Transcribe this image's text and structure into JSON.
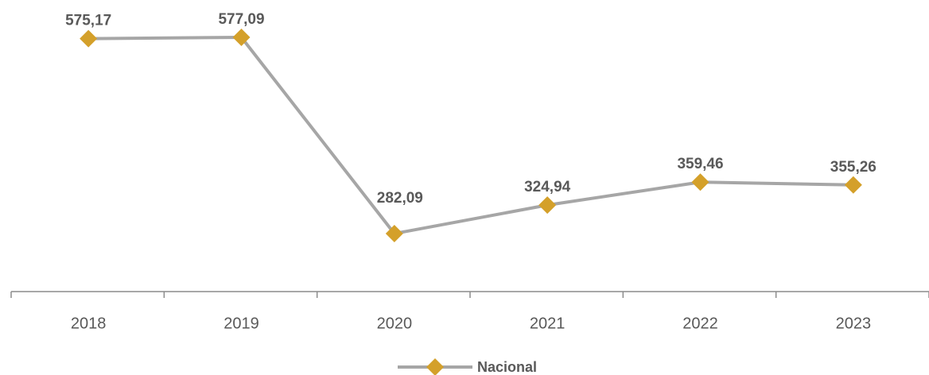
{
  "chart_data": {
    "type": "line",
    "categories": [
      "2018",
      "2019",
      "2020",
      "2021",
      "2022",
      "2023"
    ],
    "series": [
      {
        "name": "Nacional",
        "color": "#a6a6a6",
        "marker_color": "#d4a02a",
        "values": [
          575.17,
          577.09,
          282.09,
          324.94,
          359.46,
          355.26
        ],
        "value_labels": [
          "575,17",
          "577,09",
          "282,09",
          "324,94",
          "359,46",
          "355,26"
        ]
      }
    ]
  }
}
